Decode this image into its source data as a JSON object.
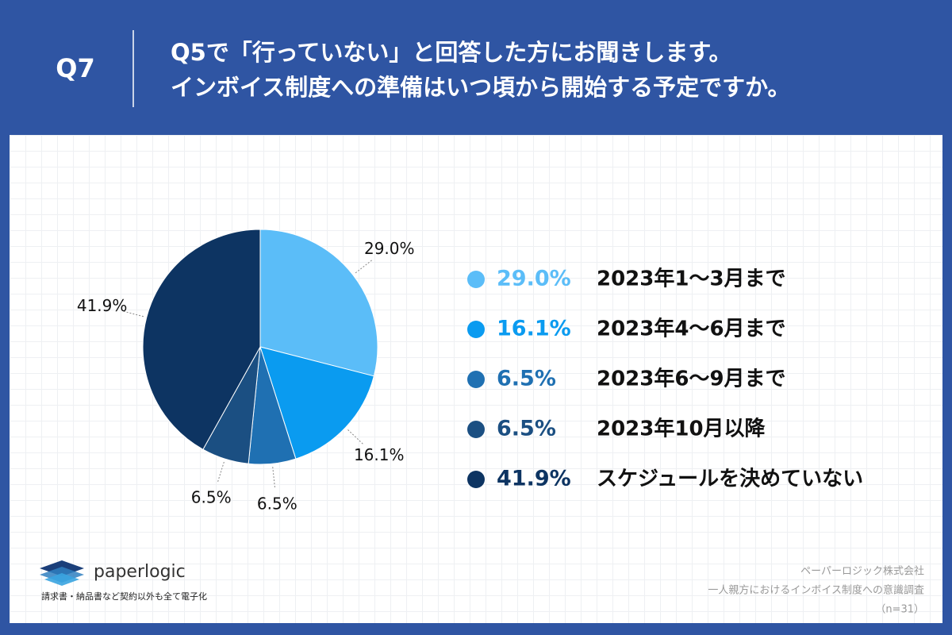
{
  "header": {
    "question": "Q7",
    "title_lines": [
      "Q5で「行っていない」と回答した方にお聞きします。",
      "インボイス制度への準備はいつ頃から開始する予定ですか。"
    ]
  },
  "chart_data": {
    "type": "pie",
    "categories": [
      "2023年1〜3月まで",
      "2023年4〜6月まで",
      "2023年6〜9月まで",
      "2023年10月以降",
      "スケジュールを決めていない"
    ],
    "values": [
      29.0,
      16.1,
      6.5,
      6.5,
      41.9
    ],
    "value_labels": [
      "29.0%",
      "16.1%",
      "6.5%",
      "6.5%",
      "41.9%"
    ],
    "colors": [
      "#5bbdf8",
      "#0a9bf0",
      "#1f70b2",
      "#1b4f82",
      "#0d3462"
    ]
  },
  "footer": {
    "brand": "paperlogic",
    "tagline": "請求書・納品書など契約以外も全て電子化",
    "source_lines": [
      "ペーパーロジック株式会社",
      "一人親方におけるインボイス制度への意識調査",
      "（n=31）"
    ]
  }
}
